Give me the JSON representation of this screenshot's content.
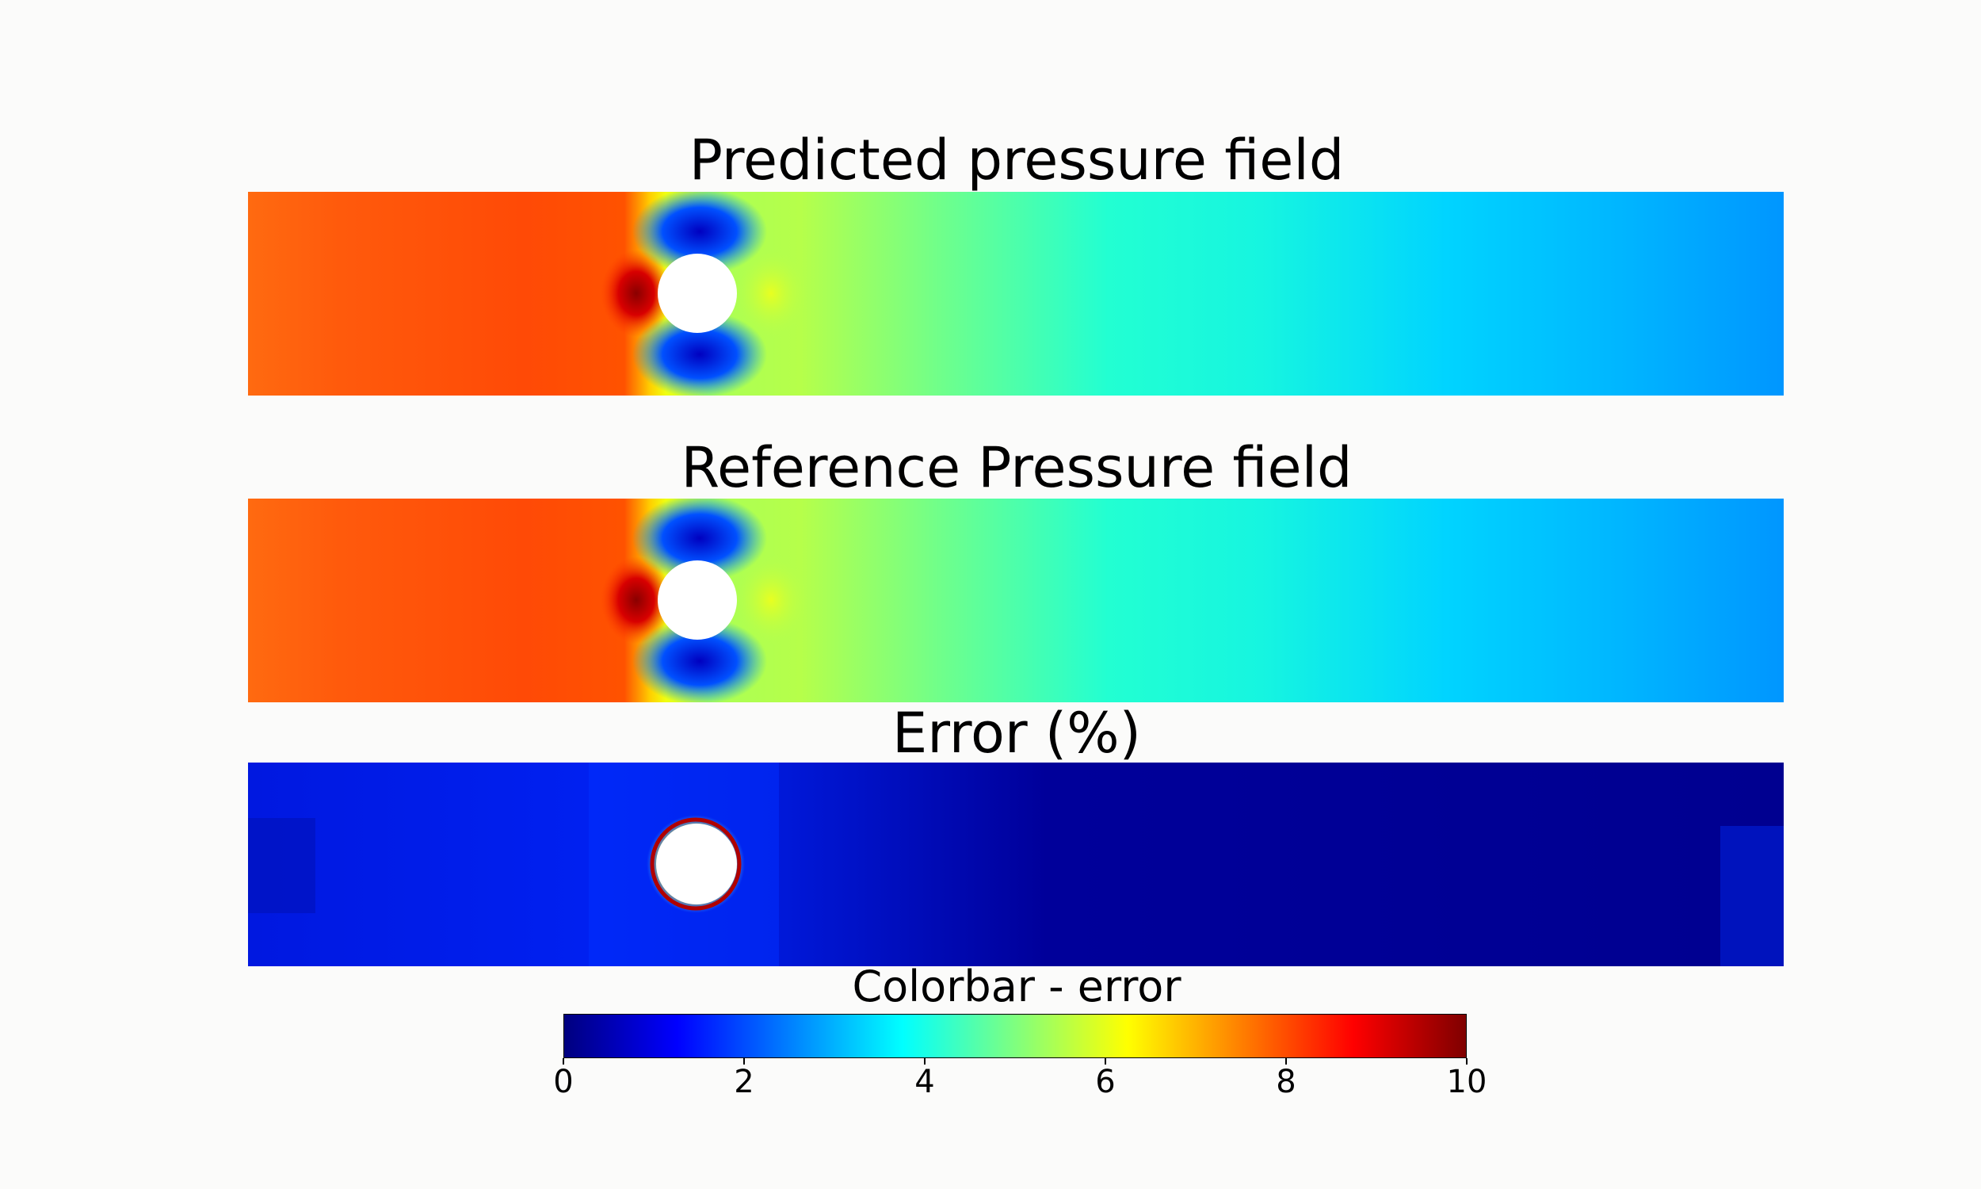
{
  "chart_data": [
    {
      "type": "heatmap",
      "title": "Predicted pressure field",
      "colormap": "jet",
      "obstacle": "circle"
    },
    {
      "type": "heatmap",
      "title": "Reference Pressure field",
      "colormap": "jet",
      "obstacle": "circle"
    },
    {
      "type": "heatmap",
      "title": "Error (%)",
      "colormap": "jet",
      "obstacle": "circle",
      "colorbar": {
        "title": "Colorbar - error",
        "range": [
          0,
          10
        ],
        "ticks": [
          0,
          2,
          4,
          6,
          8,
          10
        ],
        "tick_labels": [
          "0",
          "2",
          "4",
          "6",
          "8",
          "10"
        ]
      }
    }
  ],
  "colors": {
    "background": "#fbfbfa",
    "jet_low": "#00007f",
    "jet_mid": "#7fff7f",
    "jet_high": "#7f0000"
  }
}
